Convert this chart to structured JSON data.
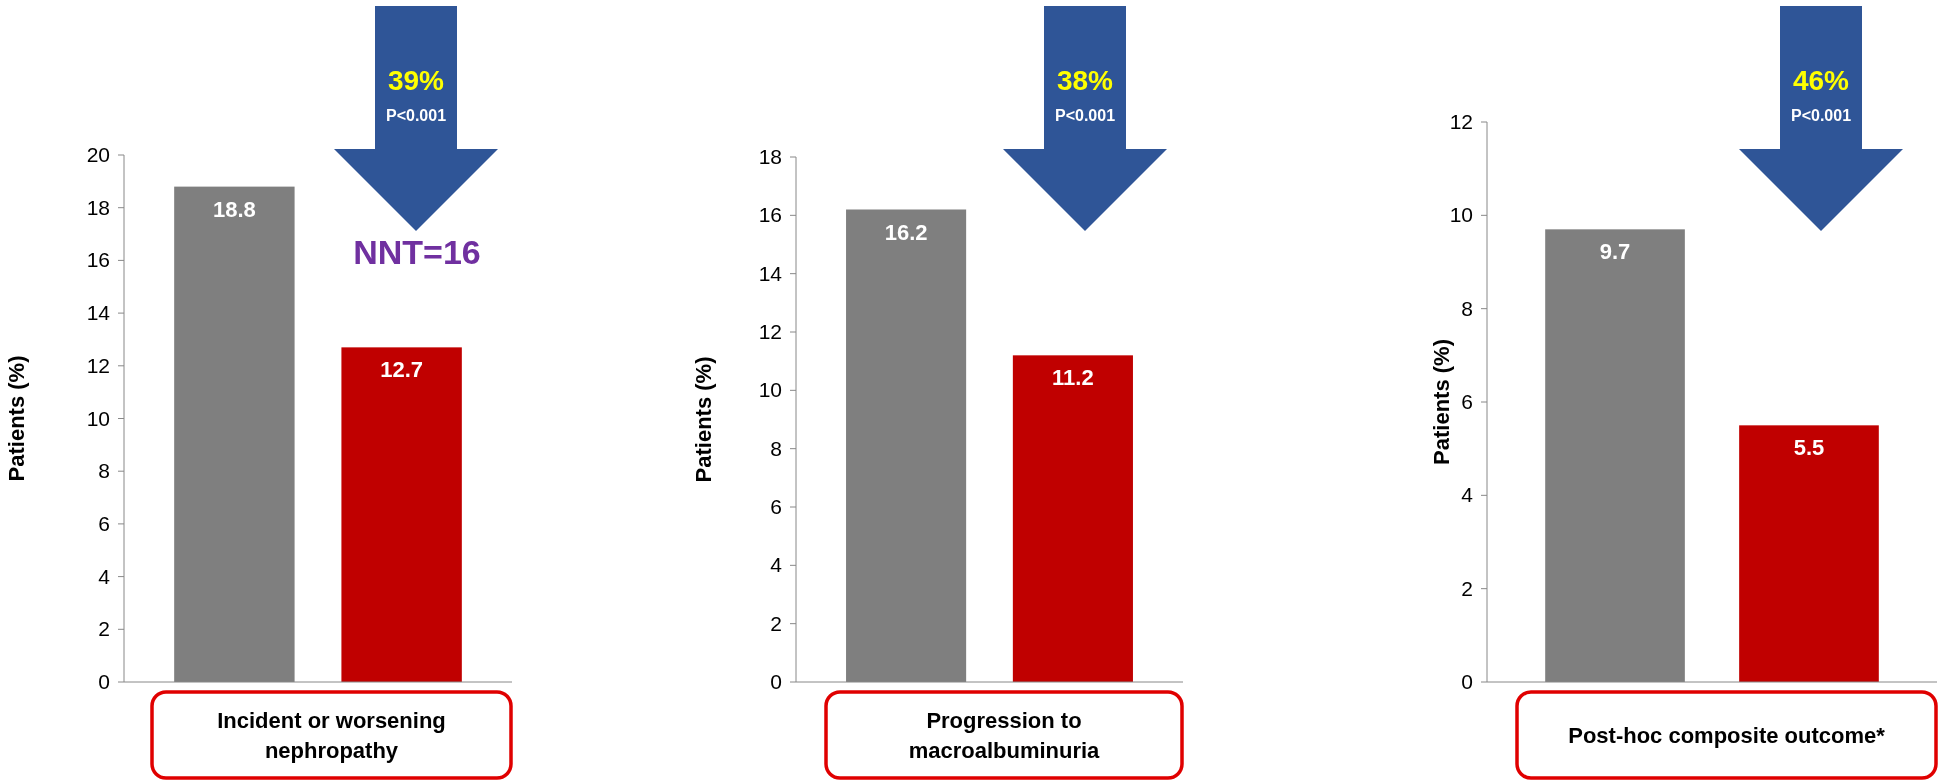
{
  "chart_data": [
    {
      "type": "bar",
      "categories": [
        null,
        null
      ],
      "values": [
        18.8,
        12.7
      ],
      "colors": [
        "#7f7f7f",
        "#c00000"
      ],
      "ylim": [
        0,
        20
      ],
      "yticks": [
        0,
        2,
        4,
        6,
        8,
        10,
        12,
        14,
        16,
        18,
        20
      ],
      "ylabel": "Patients (%)",
      "xlabel": "Incident or worsening nephropathy",
      "data_labels": true,
      "grid": false,
      "annotations": [
        "39%",
        "P<0.001",
        "NNT=16"
      ]
    },
    {
      "type": "bar",
      "categories": [
        null,
        null
      ],
      "values": [
        16.2,
        11.2
      ],
      "colors": [
        "#7f7f7f",
        "#c00000"
      ],
      "ylim": [
        0,
        18
      ],
      "yticks": [
        0,
        2,
        4,
        6,
        8,
        10,
        12,
        14,
        16,
        18
      ],
      "ylabel": "Patients (%)",
      "xlabel": "Progression to macroalbuminuria",
      "data_labels": true,
      "grid": false,
      "annotations": [
        "38%",
        "P<0.001"
      ]
    },
    {
      "type": "bar",
      "categories": [
        null,
        null
      ],
      "values": [
        9.7,
        5.5
      ],
      "colors": [
        "#7f7f7f",
        "#c00000"
      ],
      "ylim": [
        0,
        12
      ],
      "yticks": [
        0,
        2,
        4,
        6,
        8,
        10,
        12
      ],
      "ylabel": "Patients (%)",
      "xlabel": "Post-hoc  composite outcome*",
      "data_labels": true,
      "grid": false,
      "annotations": [
        "46%",
        "P<0.001"
      ]
    }
  ]
}
